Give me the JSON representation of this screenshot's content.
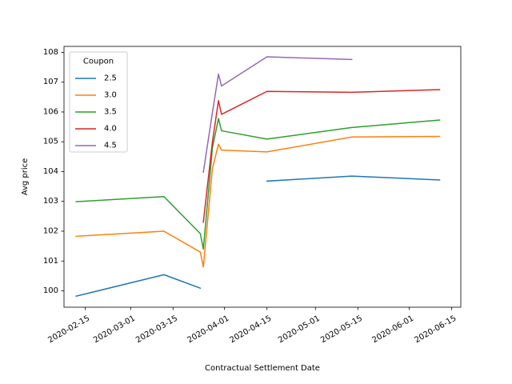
{
  "chart_data": {
    "type": "line",
    "xlabel": "Contractual Settlement Date",
    "ylabel": "Avg price",
    "x_axis_type": "date",
    "xlim": [
      "2020-02-08",
      "2020-06-18"
    ],
    "ylim": [
      99.45,
      108.2
    ],
    "x_ticks": [
      "2020-02-15",
      "2020-03-01",
      "2020-03-15",
      "2020-04-01",
      "2020-04-15",
      "2020-05-01",
      "2020-05-15",
      "2020-06-01",
      "2020-06-15"
    ],
    "y_ticks": [
      100,
      101,
      102,
      103,
      104,
      105,
      106,
      107,
      108
    ],
    "grid": false,
    "legend": {
      "title": "Coupon",
      "position": "upper-left"
    },
    "series": [
      {
        "name": "2.5",
        "color": "#1f77b4",
        "points": [
          {
            "x": "2020-02-12",
            "y": 99.82
          },
          {
            "x": "2020-03-12",
            "y": 100.54
          },
          {
            "x": "2020-03-24",
            "y": 100.09
          },
          {
            "x": null,
            "y": null
          },
          {
            "x": "2020-04-15",
            "y": 103.68
          },
          {
            "x": "2020-05-13",
            "y": 103.85
          },
          {
            "x": "2020-06-11",
            "y": 103.72
          }
        ]
      },
      {
        "name": "3.0",
        "color": "#ff7f0e",
        "points": [
          {
            "x": "2020-02-12",
            "y": 101.83
          },
          {
            "x": "2020-03-12",
            "y": 102.0
          },
          {
            "x": "2020-03-24",
            "y": 101.3
          },
          {
            "x": "2020-03-25",
            "y": 100.8
          },
          {
            "x": "2020-03-28",
            "y": 104.1
          },
          {
            "x": "2020-03-30",
            "y": 104.92
          },
          {
            "x": "2020-03-31",
            "y": 104.72
          },
          {
            "x": "2020-04-15",
            "y": 104.66
          },
          {
            "x": "2020-05-13",
            "y": 105.16
          },
          {
            "x": "2020-06-11",
            "y": 105.18
          }
        ]
      },
      {
        "name": "3.5",
        "color": "#2ca02c",
        "points": [
          {
            "x": "2020-02-12",
            "y": 102.99
          },
          {
            "x": "2020-03-12",
            "y": 103.16
          },
          {
            "x": "2020-03-24",
            "y": 101.92
          },
          {
            "x": "2020-03-25",
            "y": 101.4
          },
          {
            "x": "2020-03-28",
            "y": 104.8
          },
          {
            "x": "2020-03-30",
            "y": 105.78
          },
          {
            "x": "2020-03-31",
            "y": 105.37
          },
          {
            "x": "2020-04-15",
            "y": 105.09
          },
          {
            "x": "2020-05-13",
            "y": 105.48
          },
          {
            "x": "2020-06-11",
            "y": 105.73
          }
        ]
      },
      {
        "name": "4.0",
        "color": "#d62728",
        "points": [
          {
            "x": "2020-03-25",
            "y": 102.3
          },
          {
            "x": "2020-03-28",
            "y": 105.0
          },
          {
            "x": "2020-03-30",
            "y": 106.38
          },
          {
            "x": "2020-03-31",
            "y": 105.92
          },
          {
            "x": "2020-04-15",
            "y": 106.69
          },
          {
            "x": "2020-05-13",
            "y": 106.66
          },
          {
            "x": "2020-06-11",
            "y": 106.75
          }
        ]
      },
      {
        "name": "4.5",
        "color": "#9467bd",
        "points": [
          {
            "x": "2020-03-25",
            "y": 103.98
          },
          {
            "x": "2020-03-28",
            "y": 105.98
          },
          {
            "x": "2020-03-30",
            "y": 107.27
          },
          {
            "x": "2020-03-31",
            "y": 106.87
          },
          {
            "x": "2020-04-15",
            "y": 107.85
          },
          {
            "x": "2020-05-13",
            "y": 107.76
          }
        ]
      }
    ]
  }
}
